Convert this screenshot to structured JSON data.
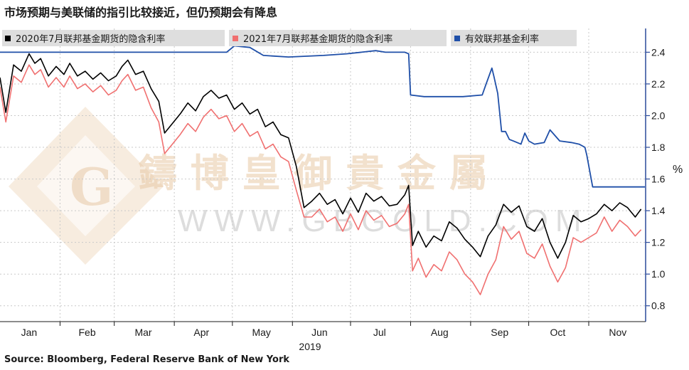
{
  "title": "市场预期与美联储的指引比较接近，但仍预期会有降息",
  "source": "Source:  Bloomberg, Federal Reserve Bank of New York",
  "watermark": {
    "text": "鑄 博 皇 御 貴 金 屬",
    "sub": "WWW.GBGOLD.COM",
    "logo": "G"
  },
  "chart_data": {
    "type": "line",
    "xlabel": "2019",
    "ylabel": "%",
    "ylim": [
      0.7,
      2.55
    ],
    "yticks": [
      0.8,
      1.0,
      1.2,
      1.4,
      1.6,
      1.8,
      2.0,
      2.2,
      2.4
    ],
    "ytick_labels": [
      "0.8",
      "1.0",
      "1.2",
      "1.4",
      "1.6",
      "1.8",
      "2.0",
      "2.2",
      "2.4"
    ],
    "xlim": [
      1,
      334
    ],
    "months": [
      {
        "label": "Jan",
        "day": 16
      },
      {
        "label": "Feb",
        "day": 46
      },
      {
        "label": "Mar",
        "day": 75
      },
      {
        "label": "Apr",
        "day": 105
      },
      {
        "label": "May",
        "day": 136
      },
      {
        "label": "Jun",
        "day": 166
      },
      {
        "label": "Jul",
        "day": 197
      },
      {
        "label": "Aug",
        "day": 228
      },
      {
        "label": "Sep",
        "day": 259
      },
      {
        "label": "Oct",
        "day": 289
      },
      {
        "label": "Nov",
        "day": 320
      }
    ],
    "month_boundaries": [
      32,
      60,
      91,
      121,
      152,
      182,
      213,
      244,
      274,
      305
    ],
    "legend": [
      "2020年7月联邦基金期货的隐含利率",
      "2021年7月联邦基金期货的隐含利率",
      "有效联邦基金利率"
    ],
    "series": [
      {
        "name": "2020年7月联邦基金期货的隐含利率",
        "color": "#000000",
        "x": [
          1,
          4,
          8,
          12,
          16,
          19,
          22,
          26,
          30,
          34,
          37,
          41,
          45,
          49,
          53,
          57,
          61,
          64,
          67,
          71,
          75,
          79,
          83,
          86,
          90,
          94,
          98,
          102,
          106,
          110,
          114,
          118,
          122,
          126,
          130,
          134,
          138,
          142,
          146,
          150,
          154,
          158,
          162,
          166,
          170,
          174,
          178,
          182,
          186,
          190,
          194,
          198,
          202,
          206,
          210,
          212,
          214,
          217,
          221,
          225,
          229,
          233,
          237,
          241,
          245,
          249,
          253,
          257,
          261,
          265,
          269,
          273,
          277,
          281,
          285,
          289,
          293,
          297,
          301,
          305,
          309,
          313,
          317,
          321,
          325,
          329,
          332
        ],
        "y": [
          2.24,
          2.02,
          2.32,
          2.28,
          2.39,
          2.33,
          2.36,
          2.25,
          2.31,
          2.26,
          2.33,
          2.25,
          2.28,
          2.23,
          2.27,
          2.22,
          2.25,
          2.31,
          2.35,
          2.26,
          2.28,
          2.17,
          2.09,
          1.89,
          1.95,
          2.01,
          2.08,
          2.03,
          2.12,
          2.16,
          2.11,
          2.13,
          2.04,
          2.08,
          2.01,
          2.04,
          1.93,
          1.96,
          1.88,
          1.86,
          1.68,
          1.42,
          1.46,
          1.51,
          1.44,
          1.47,
          1.38,
          1.48,
          1.39,
          1.51,
          1.46,
          1.49,
          1.43,
          1.44,
          1.5,
          1.56,
          1.18,
          1.27,
          1.17,
          1.24,
          1.21,
          1.33,
          1.29,
          1.22,
          1.17,
          1.11,
          1.24,
          1.31,
          1.44,
          1.39,
          1.43,
          1.3,
          1.27,
          1.35,
          1.2,
          1.1,
          1.2,
          1.37,
          1.33,
          1.35,
          1.38,
          1.44,
          1.4,
          1.45,
          1.42,
          1.36,
          1.41
        ]
      },
      {
        "name": "2021年7月联邦基金期货的隐含利率",
        "color": "#f07070",
        "x": [
          1,
          4,
          8,
          12,
          16,
          19,
          22,
          26,
          30,
          34,
          37,
          41,
          45,
          49,
          53,
          57,
          61,
          64,
          67,
          71,
          75,
          79,
          83,
          86,
          90,
          94,
          98,
          102,
          106,
          110,
          114,
          118,
          122,
          126,
          130,
          134,
          138,
          142,
          146,
          150,
          154,
          158,
          162,
          166,
          170,
          174,
          178,
          182,
          186,
          190,
          194,
          198,
          202,
          206,
          210,
          212,
          214,
          217,
          221,
          225,
          229,
          233,
          237,
          241,
          245,
          249,
          253,
          257,
          261,
          265,
          269,
          273,
          277,
          281,
          285,
          289,
          293,
          297,
          301,
          305,
          309,
          313,
          317,
          321,
          325,
          329,
          332
        ],
        "y": [
          2.18,
          1.96,
          2.25,
          2.21,
          2.32,
          2.26,
          2.29,
          2.18,
          2.24,
          2.18,
          2.25,
          2.17,
          2.2,
          2.15,
          2.19,
          2.13,
          2.16,
          2.22,
          2.26,
          2.16,
          2.18,
          2.05,
          1.96,
          1.76,
          1.82,
          1.88,
          1.95,
          1.9,
          1.99,
          2.04,
          1.98,
          2.0,
          1.9,
          1.95,
          1.87,
          1.9,
          1.79,
          1.82,
          1.74,
          1.71,
          1.53,
          1.36,
          1.36,
          1.41,
          1.33,
          1.36,
          1.27,
          1.38,
          1.28,
          1.4,
          1.34,
          1.37,
          1.3,
          1.32,
          1.38,
          1.44,
          1.02,
          1.1,
          0.98,
          1.06,
          1.02,
          1.14,
          1.09,
          1.0,
          0.95,
          0.87,
          1.0,
          1.09,
          1.3,
          1.22,
          1.27,
          1.13,
          1.1,
          1.19,
          1.05,
          0.95,
          1.04,
          1.23,
          1.2,
          1.23,
          1.26,
          1.36,
          1.27,
          1.34,
          1.3,
          1.24,
          1.28
        ]
      },
      {
        "name": "有效联邦基金利率",
        "color": "#1f4fa8",
        "x": [
          1,
          91,
          118,
          122,
          130,
          137,
          150,
          168,
          180,
          195,
          200,
          210,
          212,
          213,
          220,
          240,
          250,
          252,
          255,
          256,
          258,
          260,
          262,
          264,
          266,
          270,
          272,
          274,
          277,
          282,
          285,
          290,
          296,
          300,
          303,
          304,
          307,
          320,
          334
        ],
        "y": [
          2.4,
          2.4,
          2.4,
          2.44,
          2.43,
          2.38,
          2.37,
          2.38,
          2.39,
          2.41,
          2.4,
          2.4,
          2.39,
          2.13,
          2.12,
          2.12,
          2.13,
          2.2,
          2.3,
          2.25,
          2.14,
          1.9,
          1.9,
          1.85,
          1.84,
          1.82,
          1.89,
          1.84,
          1.82,
          1.83,
          1.91,
          1.84,
          1.83,
          1.82,
          1.8,
          1.75,
          1.55,
          1.55,
          1.55
        ]
      }
    ]
  }
}
